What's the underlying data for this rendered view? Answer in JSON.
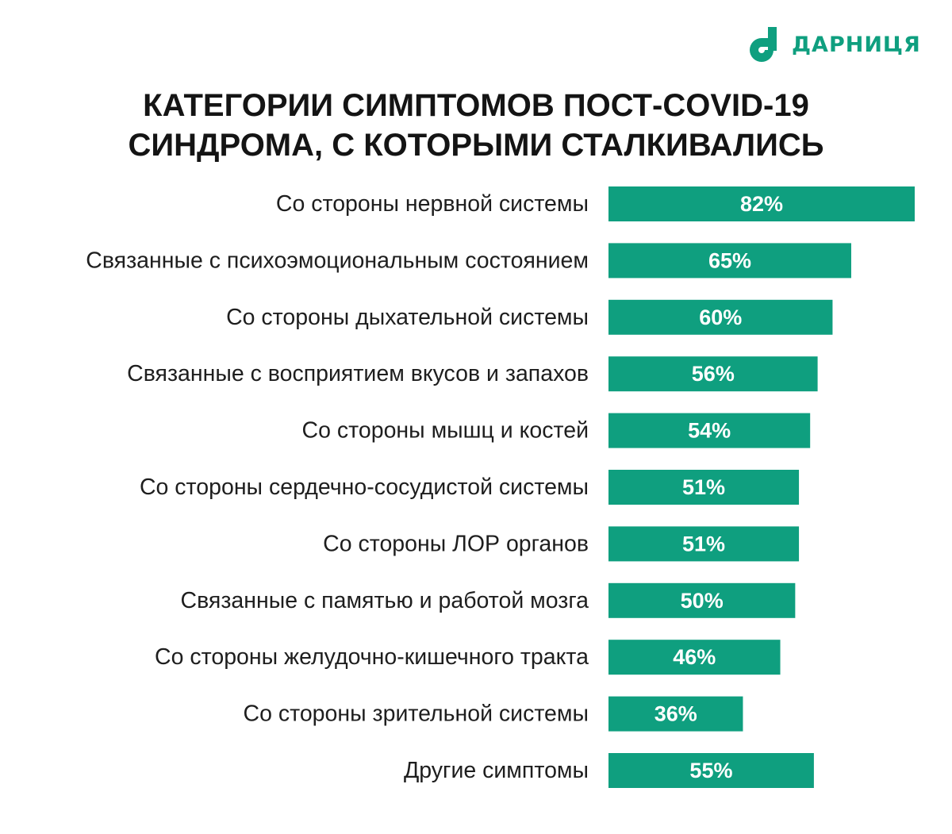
{
  "brand": {
    "name": "ДАРНИЦЯ",
    "color": "#0f9f7f"
  },
  "chart_data": {
    "type": "bar",
    "orientation": "horizontal",
    "title_lines": [
      "КАТЕГОРИИ СИМПТОМОВ ПОСТ-COVID-19",
      "СИНДРОМА, С КОТОРЫМИ СТАЛКИВАЛИСЬ"
    ],
    "categories": [
      "Со стороны нервной системы",
      "Связанные с психоэмоциональным состоянием",
      "Со стороны дыхательной системы",
      "Связанные с восприятием вкусов и запахов",
      "Со стороны мышц и костей",
      "Со стороны сердечно-сосудистой системы",
      "Со стороны ЛОР органов",
      "Связанные с памятью и работой мозга",
      "Со стороны желудочно-кишечного тракта",
      "Со стороны зрительной системы",
      "Другие симптомы"
    ],
    "values": [
      82,
      65,
      60,
      56,
      54,
      51,
      51,
      50,
      46,
      36,
      55
    ],
    "value_labels": [
      "82%",
      "65%",
      "60%",
      "56%",
      "54%",
      "51%",
      "51%",
      "50%",
      "46%",
      "36%",
      "55%"
    ],
    "unit": "%",
    "bar_color": "#0f9f7f",
    "grid": false,
    "legend": "none"
  }
}
